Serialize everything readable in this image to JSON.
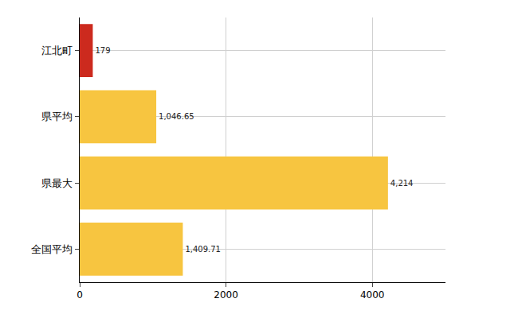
{
  "chart_data": {
    "type": "bar",
    "orientation": "horizontal",
    "categories": [
      "江北町",
      "県平均",
      "県最大",
      "全国平均"
    ],
    "values": [
      179,
      1046.65,
      4214,
      1409.71
    ],
    "value_labels": [
      "179",
      "1,046.65",
      "4,214",
      "1,409.71"
    ],
    "colors": [
      "#cc2a1e",
      "#f7c540",
      "#f7c540",
      "#f7c540"
    ],
    "xlim": [
      0,
      5000
    ],
    "xticks": [
      0,
      2000,
      4000
    ],
    "grid": true,
    "data_labels": true
  }
}
